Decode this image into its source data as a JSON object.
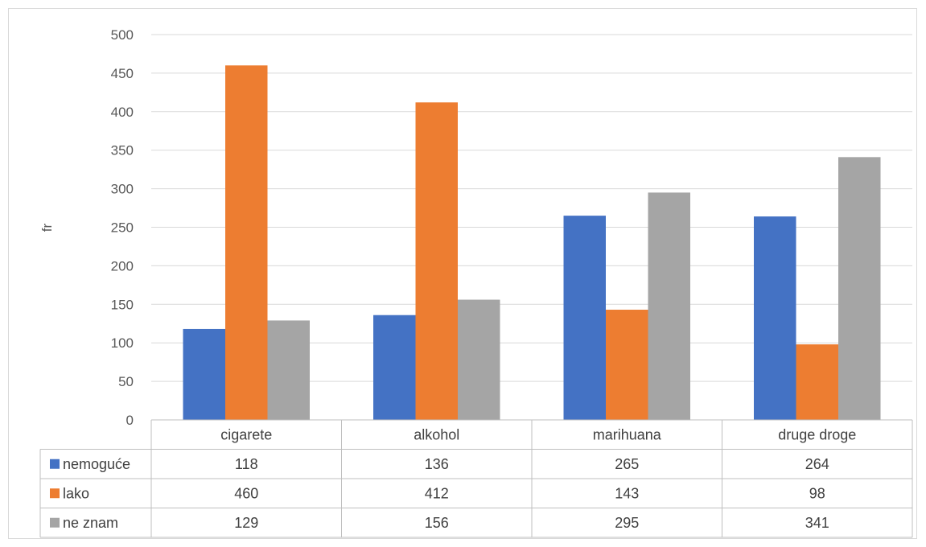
{
  "chart_data": {
    "type": "bar",
    "title": "",
    "xlabel": "",
    "ylabel": "fr",
    "ylim": [
      0,
      500
    ],
    "yticks": [
      0,
      50,
      100,
      150,
      200,
      250,
      300,
      350,
      400,
      450,
      500
    ],
    "grid": true,
    "legend": "data-table",
    "categories": [
      "cigarete",
      "alkohol",
      "marihuana",
      "druge droge"
    ],
    "series": [
      {
        "name": "nemoguće",
        "color": "#4472C4",
        "values": [
          118,
          136,
          265,
          264
        ]
      },
      {
        "name": "lako",
        "color": "#ED7D31",
        "values": [
          460,
          412,
          143,
          98
        ]
      },
      {
        "name": "ne znam",
        "color": "#A5A5A5",
        "values": [
          129,
          156,
          295,
          341
        ]
      }
    ]
  }
}
